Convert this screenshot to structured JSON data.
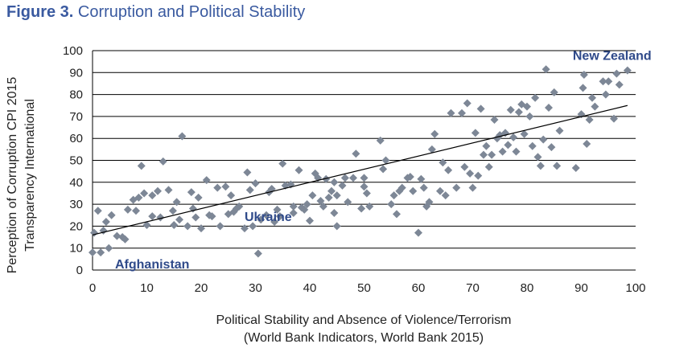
{
  "figure": {
    "number": "Figure 3.",
    "title": "Corruption and Political Stability"
  },
  "colors": {
    "title": "#3a5aa0",
    "marker": "#7d8796",
    "annotation": "#2f4a8a",
    "trendline": "#000000",
    "grid": "#000000"
  },
  "chart_data": {
    "type": "scatter",
    "title": "Corruption and Political Stability",
    "xlabel": [
      "Political Stability and Absence of Violence/Terrorism",
      "(World Bank Indicators, World Bank 2015)"
    ],
    "ylabel": [
      "Perception of Corruption CPI 2015",
      "Transparency International"
    ],
    "xlim": [
      0,
      100
    ],
    "ylim": [
      0,
      100
    ],
    "xticks": [
      0,
      10,
      20,
      30,
      40,
      50,
      60,
      70,
      80,
      90,
      100
    ],
    "yticks": [
      0,
      10,
      20,
      30,
      40,
      50,
      60,
      70,
      80,
      90,
      100
    ],
    "grid": "horizontal",
    "marker": "diamond",
    "trendline": {
      "type": "linear",
      "x": [
        0,
        98.5
      ],
      "y": [
        16,
        75
      ]
    },
    "annotations": [
      {
        "text": "New Zealand",
        "x": 98.5,
        "y": 91
      },
      {
        "text": "Ukraine",
        "x": 28,
        "y": 19
      },
      {
        "text": "Afghanistan",
        "x": 0,
        "y": 8
      }
    ],
    "points": [
      [
        0,
        8
      ],
      [
        1.5,
        8
      ],
      [
        0.3,
        17
      ],
      [
        1,
        27
      ],
      [
        2,
        18
      ],
      [
        2.5,
        22
      ],
      [
        3,
        10
      ],
      [
        3.5,
        25
      ],
      [
        4.5,
        15.5
      ],
      [
        5.5,
        15
      ],
      [
        6,
        14
      ],
      [
        6.5,
        27.5
      ],
      [
        7.5,
        32
      ],
      [
        8.5,
        33
      ],
      [
        9,
        47.5
      ],
      [
        9.5,
        35
      ],
      [
        8,
        27
      ],
      [
        10,
        20.5
      ],
      [
        11,
        34
      ],
      [
        11,
        24.5
      ],
      [
        12,
        36
      ],
      [
        12.5,
        24
      ],
      [
        13,
        49.5
      ],
      [
        14,
        36.5
      ],
      [
        15,
        20.5
      ],
      [
        14.8,
        27
      ],
      [
        15.5,
        31
      ],
      [
        16,
        23
      ],
      [
        16.5,
        61
      ],
      [
        17.5,
        20
      ],
      [
        18.2,
        35.5
      ],
      [
        18.5,
        28
      ],
      [
        19,
        24
      ],
      [
        19.5,
        33
      ],
      [
        20,
        19
      ],
      [
        21,
        41
      ],
      [
        21.5,
        25
      ],
      [
        22,
        24.5
      ],
      [
        23,
        37.5
      ],
      [
        23.5,
        20
      ],
      [
        24.5,
        38
      ],
      [
        25,
        25.5
      ],
      [
        25.5,
        34
      ],
      [
        26,
        26.5
      ],
      [
        26.5,
        28
      ],
      [
        27,
        29
      ],
      [
        28,
        19
      ],
      [
        28.5,
        44.5
      ],
      [
        29,
        36.5
      ],
      [
        29.5,
        20
      ],
      [
        30,
        39.5
      ],
      [
        30.5,
        7.5
      ],
      [
        31,
        23
      ],
      [
        32,
        25
      ],
      [
        32.5,
        35.5
      ],
      [
        33,
        37
      ],
      [
        33.5,
        22
      ],
      [
        34,
        27.5
      ],
      [
        34.5,
        24.5
      ],
      [
        35,
        48.5
      ],
      [
        35.5,
        38.5
      ],
      [
        36.5,
        39
      ],
      [
        37,
        29
      ],
      [
        37,
        26
      ],
      [
        38,
        45.5
      ],
      [
        38.5,
        28.5
      ],
      [
        39,
        27.5
      ],
      [
        39.5,
        30
      ],
      [
        40,
        22.5
      ],
      [
        40.5,
        34
      ],
      [
        41,
        44
      ],
      [
        41.5,
        42
      ],
      [
        42,
        31.5
      ],
      [
        42.5,
        29
      ],
      [
        43,
        41.5
      ],
      [
        43.5,
        33
      ],
      [
        44,
        36
      ],
      [
        44.5,
        26
      ],
      [
        44.5,
        40
      ],
      [
        45,
        20
      ],
      [
        45,
        34
      ],
      [
        46,
        38.5
      ],
      [
        46.5,
        42
      ],
      [
        47,
        31
      ],
      [
        48,
        42
      ],
      [
        48.5,
        53
      ],
      [
        49.5,
        28
      ],
      [
        50,
        38
      ],
      [
        50.5,
        35
      ],
      [
        50,
        42
      ],
      [
        51,
        29
      ],
      [
        53,
        59
      ],
      [
        53.5,
        46
      ],
      [
        54,
        50
      ],
      [
        55,
        30
      ],
      [
        55.5,
        34
      ],
      [
        56,
        25.5
      ],
      [
        56.5,
        36
      ],
      [
        57,
        37.5
      ],
      [
        58,
        42
      ],
      [
        58.5,
        42.5
      ],
      [
        59,
        36
      ],
      [
        60,
        17
      ],
      [
        60.5,
        41.5
      ],
      [
        61,
        37.5
      ],
      [
        61.5,
        29
      ],
      [
        62,
        31
      ],
      [
        62.5,
        55
      ],
      [
        63,
        62
      ],
      [
        64,
        36
      ],
      [
        64.5,
        49
      ],
      [
        65,
        34
      ],
      [
        65.5,
        45.5
      ],
      [
        66,
        71.5
      ],
      [
        67,
        37.5
      ],
      [
        68,
        71.5
      ],
      [
        68.5,
        47
      ],
      [
        69,
        76
      ],
      [
        69.5,
        44
      ],
      [
        70,
        37.5
      ],
      [
        70.5,
        62.5
      ],
      [
        71,
        43
      ],
      [
        71.5,
        73.5
      ],
      [
        72,
        52.5
      ],
      [
        72.5,
        56.5
      ],
      [
        73,
        47
      ],
      [
        73.5,
        52.5
      ],
      [
        74,
        68.5
      ],
      [
        74.5,
        60
      ],
      [
        75,
        61.5
      ],
      [
        75.5,
        54
      ],
      [
        76,
        62.5
      ],
      [
        76.5,
        57
      ],
      [
        77,
        73
      ],
      [
        77.5,
        60.5
      ],
      [
        78,
        54
      ],
      [
        78.5,
        72
      ],
      [
        79,
        75.5
      ],
      [
        79.5,
        62
      ],
      [
        80,
        74.5
      ],
      [
        80.5,
        70
      ],
      [
        81,
        56.5
      ],
      [
        81.5,
        78.5
      ],
      [
        82,
        51.5
      ],
      [
        82.5,
        47.5
      ],
      [
        83,
        59.5
      ],
      [
        83.5,
        91.5
      ],
      [
        84,
        74
      ],
      [
        84.5,
        56
      ],
      [
        85,
        81
      ],
      [
        85.5,
        47.5
      ],
      [
        86,
        63.5
      ],
      [
        89,
        46.5
      ],
      [
        90,
        71
      ],
      [
        90.3,
        83
      ],
      [
        90.5,
        89
      ],
      [
        91,
        57.5
      ],
      [
        91.5,
        68.5
      ],
      [
        92,
        78.5
      ],
      [
        92.5,
        74.5
      ],
      [
        94,
        86
      ],
      [
        94.5,
        80
      ],
      [
        95,
        86
      ],
      [
        96,
        69
      ],
      [
        96.5,
        89.5
      ],
      [
        97,
        84.5
      ],
      [
        98.5,
        91
      ]
    ]
  }
}
